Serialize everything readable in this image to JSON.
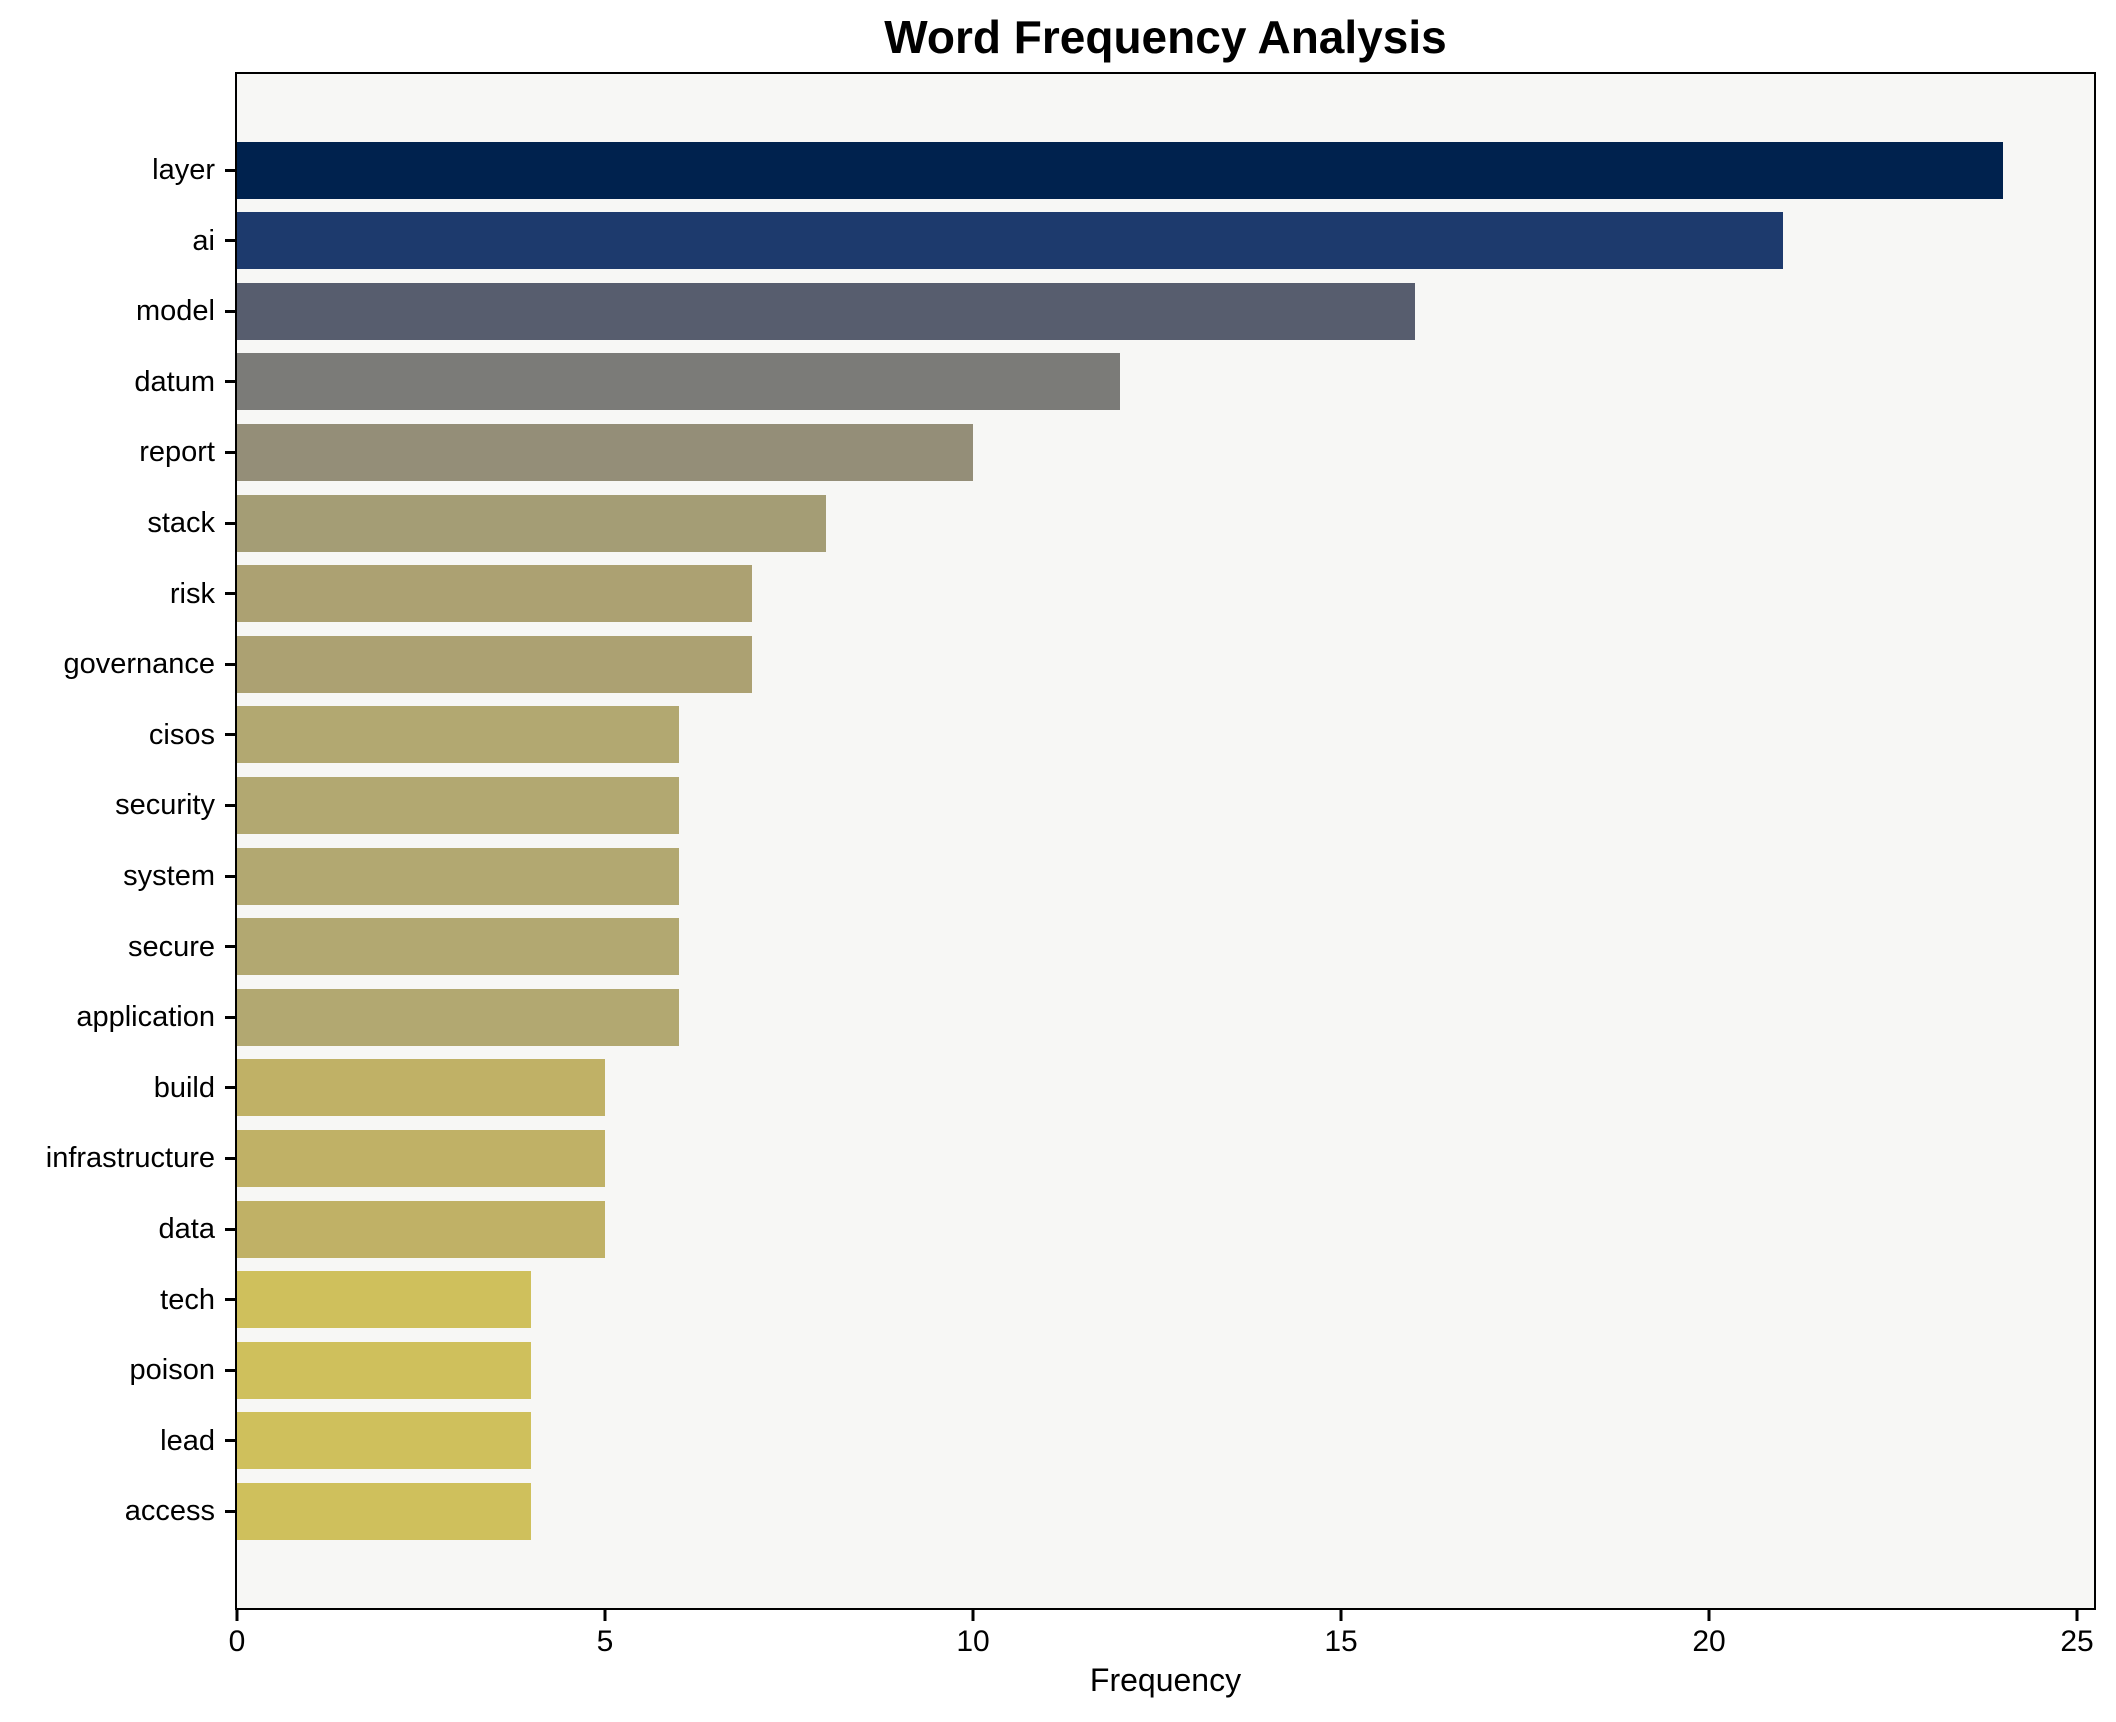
{
  "chart_data": {
    "type": "bar",
    "orientation": "horizontal",
    "title": "Word Frequency Analysis",
    "xlabel": "Frequency",
    "ylabel": "",
    "categories": [
      "layer",
      "ai",
      "model",
      "datum",
      "report",
      "stack",
      "risk",
      "governance",
      "cisos",
      "security",
      "system",
      "secure",
      "application",
      "build",
      "infrastructure",
      "data",
      "tech",
      "poison",
      "lead",
      "access"
    ],
    "values": [
      24,
      21,
      16,
      12,
      10,
      8,
      7,
      7,
      6,
      6,
      6,
      6,
      6,
      5,
      5,
      5,
      4,
      4,
      4,
      4
    ],
    "bar_colors": [
      "#00224e",
      "#1d3a6d",
      "#575d6e",
      "#7b7b78",
      "#948e78",
      "#a49d75",
      "#aca172",
      "#aca172",
      "#b2a871",
      "#b2a871",
      "#b2a871",
      "#b2a871",
      "#b2a871",
      "#c0b166",
      "#c0b166",
      "#c0b166",
      "#cfc05c",
      "#cfc05c",
      "#cfc05c",
      "#cfc05c"
    ],
    "x_ticks": [
      0,
      5,
      10,
      15,
      20,
      25
    ],
    "xlim": [
      0,
      25.23
    ],
    "grid": false,
    "legend": null,
    "plot_background": "#f7f7f5",
    "figure_background": "#ffffff",
    "spine_color": "#000000",
    "tick_color": "#000000"
  }
}
